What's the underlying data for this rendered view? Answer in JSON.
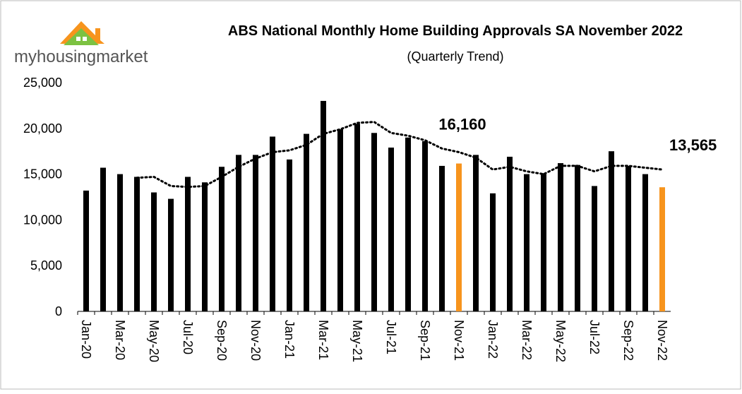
{
  "logo": {
    "text": "myhousingmarket"
  },
  "chart_data": {
    "type": "bar",
    "title": "ABS National Monthly Home Building Approvals SA November 2022",
    "subtitle": "(Quarterly Trend)",
    "categories": [
      "Jan-20",
      null,
      "Mar-20",
      null,
      "May-20",
      null,
      "Jul-20",
      null,
      "Sep-20",
      null,
      "Nov-20",
      null,
      "Jan-21",
      null,
      "Mar-21",
      null,
      "May-21",
      null,
      "Jul-21",
      null,
      "Sep-21",
      null,
      "Nov-21",
      null,
      "Jan-22",
      null,
      "Mar-22",
      null,
      "May-22",
      null,
      "Jul-22",
      null,
      "Sep-22",
      null,
      "Nov-22"
    ],
    "series": [
      {
        "type": "bar",
        "color": "#000000",
        "colors": [
          "#000000",
          "#000000",
          "#000000",
          "#000000",
          "#000000",
          "#000000",
          "#000000",
          "#000000",
          "#000000",
          "#000000",
          "#000000",
          "#000000",
          "#000000",
          "#000000",
          "#000000",
          "#000000",
          "#000000",
          "#000000",
          "#000000",
          "#000000",
          "#000000",
          "#000000",
          "#f7941d",
          "#000000",
          "#000000",
          "#000000",
          "#000000",
          "#000000",
          "#000000",
          "#000000",
          "#000000",
          "#000000",
          "#000000",
          "#000000",
          "#f7941d"
        ],
        "values": [
          13200,
          15700,
          15000,
          14700,
          13000,
          12300,
          14700,
          14100,
          15800,
          17100,
          17100,
          19100,
          16600,
          19400,
          23000,
          19900,
          20500,
          19500,
          17900,
          19000,
          18600,
          15900,
          16160,
          17100,
          12900,
          16900,
          15000,
          15100,
          16200,
          16000,
          13700,
          17500,
          15900,
          15000,
          13565
        ],
        "value_labels": [
          null,
          null,
          null,
          null,
          null,
          null,
          null,
          null,
          null,
          null,
          null,
          null,
          null,
          null,
          null,
          null,
          null,
          null,
          null,
          null,
          null,
          null,
          "16,160",
          null,
          null,
          null,
          null,
          null,
          null,
          null,
          null,
          null,
          null,
          null,
          "13,565"
        ]
      },
      {
        "type": "line",
        "style": "dotted",
        "color": "#000000",
        "values": [
          null,
          null,
          null,
          14600,
          14700,
          13700,
          13600,
          13700,
          14700,
          15800,
          16700,
          17400,
          17600,
          18200,
          19400,
          19900,
          20600,
          20700,
          19500,
          19200,
          18700,
          17800,
          17400,
          16800,
          15500,
          15800,
          15300,
          15000,
          15900,
          15900,
          15300,
          15900,
          15900,
          15700,
          15500
        ]
      }
    ],
    "ylim": [
      0,
      25000
    ],
    "yticks": [
      0,
      {
        "value": 5000,
        "label": "5,000"
      },
      {
        "value": 10000,
        "label": "10,000"
      },
      {
        "value": 15000,
        "label": "15,000"
      },
      {
        "value": 20000,
        "label": "20,000"
      },
      {
        "value": 25000,
        "label": "25,000"
      }
    ],
    "grid": false
  }
}
